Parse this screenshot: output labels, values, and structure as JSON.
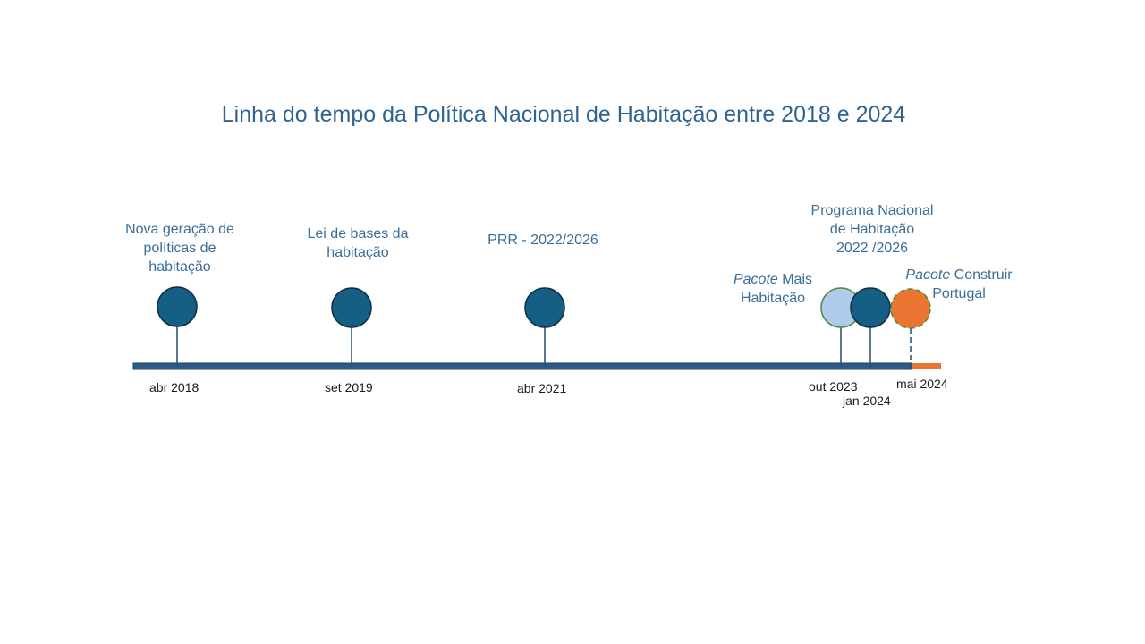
{
  "title": "Linha do tempo da Política Nacional de Habitação entre 2018 e 2024",
  "events": [
    {
      "date": "abr 2018",
      "label_lines": [
        "Nova geração de",
        "políticas de",
        "habitação"
      ],
      "marker": "milestone"
    },
    {
      "date": "set 2019",
      "label_lines": [
        "Lei de bases da",
        "habitação"
      ],
      "marker": "milestone"
    },
    {
      "date": "abr 2021",
      "label_lines": [
        "PRR - 2022/2026"
      ],
      "marker": "milestone"
    },
    {
      "date": "out 2023",
      "label_italic": "Pacote",
      "label_rest": " Mais",
      "label_line2": "Habitação",
      "marker": "light"
    },
    {
      "date": "jan 2024",
      "label_lines": [
        "Programa Nacional",
        "de Habitação",
        "2022 /2026"
      ],
      "marker": "milestone"
    },
    {
      "date": "mai 2024",
      "label_italic": "Pacote",
      "label_rest": " Construir",
      "label_line2": "Portugal",
      "marker": "orange-dashed"
    }
  ],
  "colors": {
    "milestone": "#155f84",
    "light": "#aecbeb",
    "orange": "#ea7431",
    "axis": "#2e5a8a",
    "text": "#3a6e98"
  }
}
